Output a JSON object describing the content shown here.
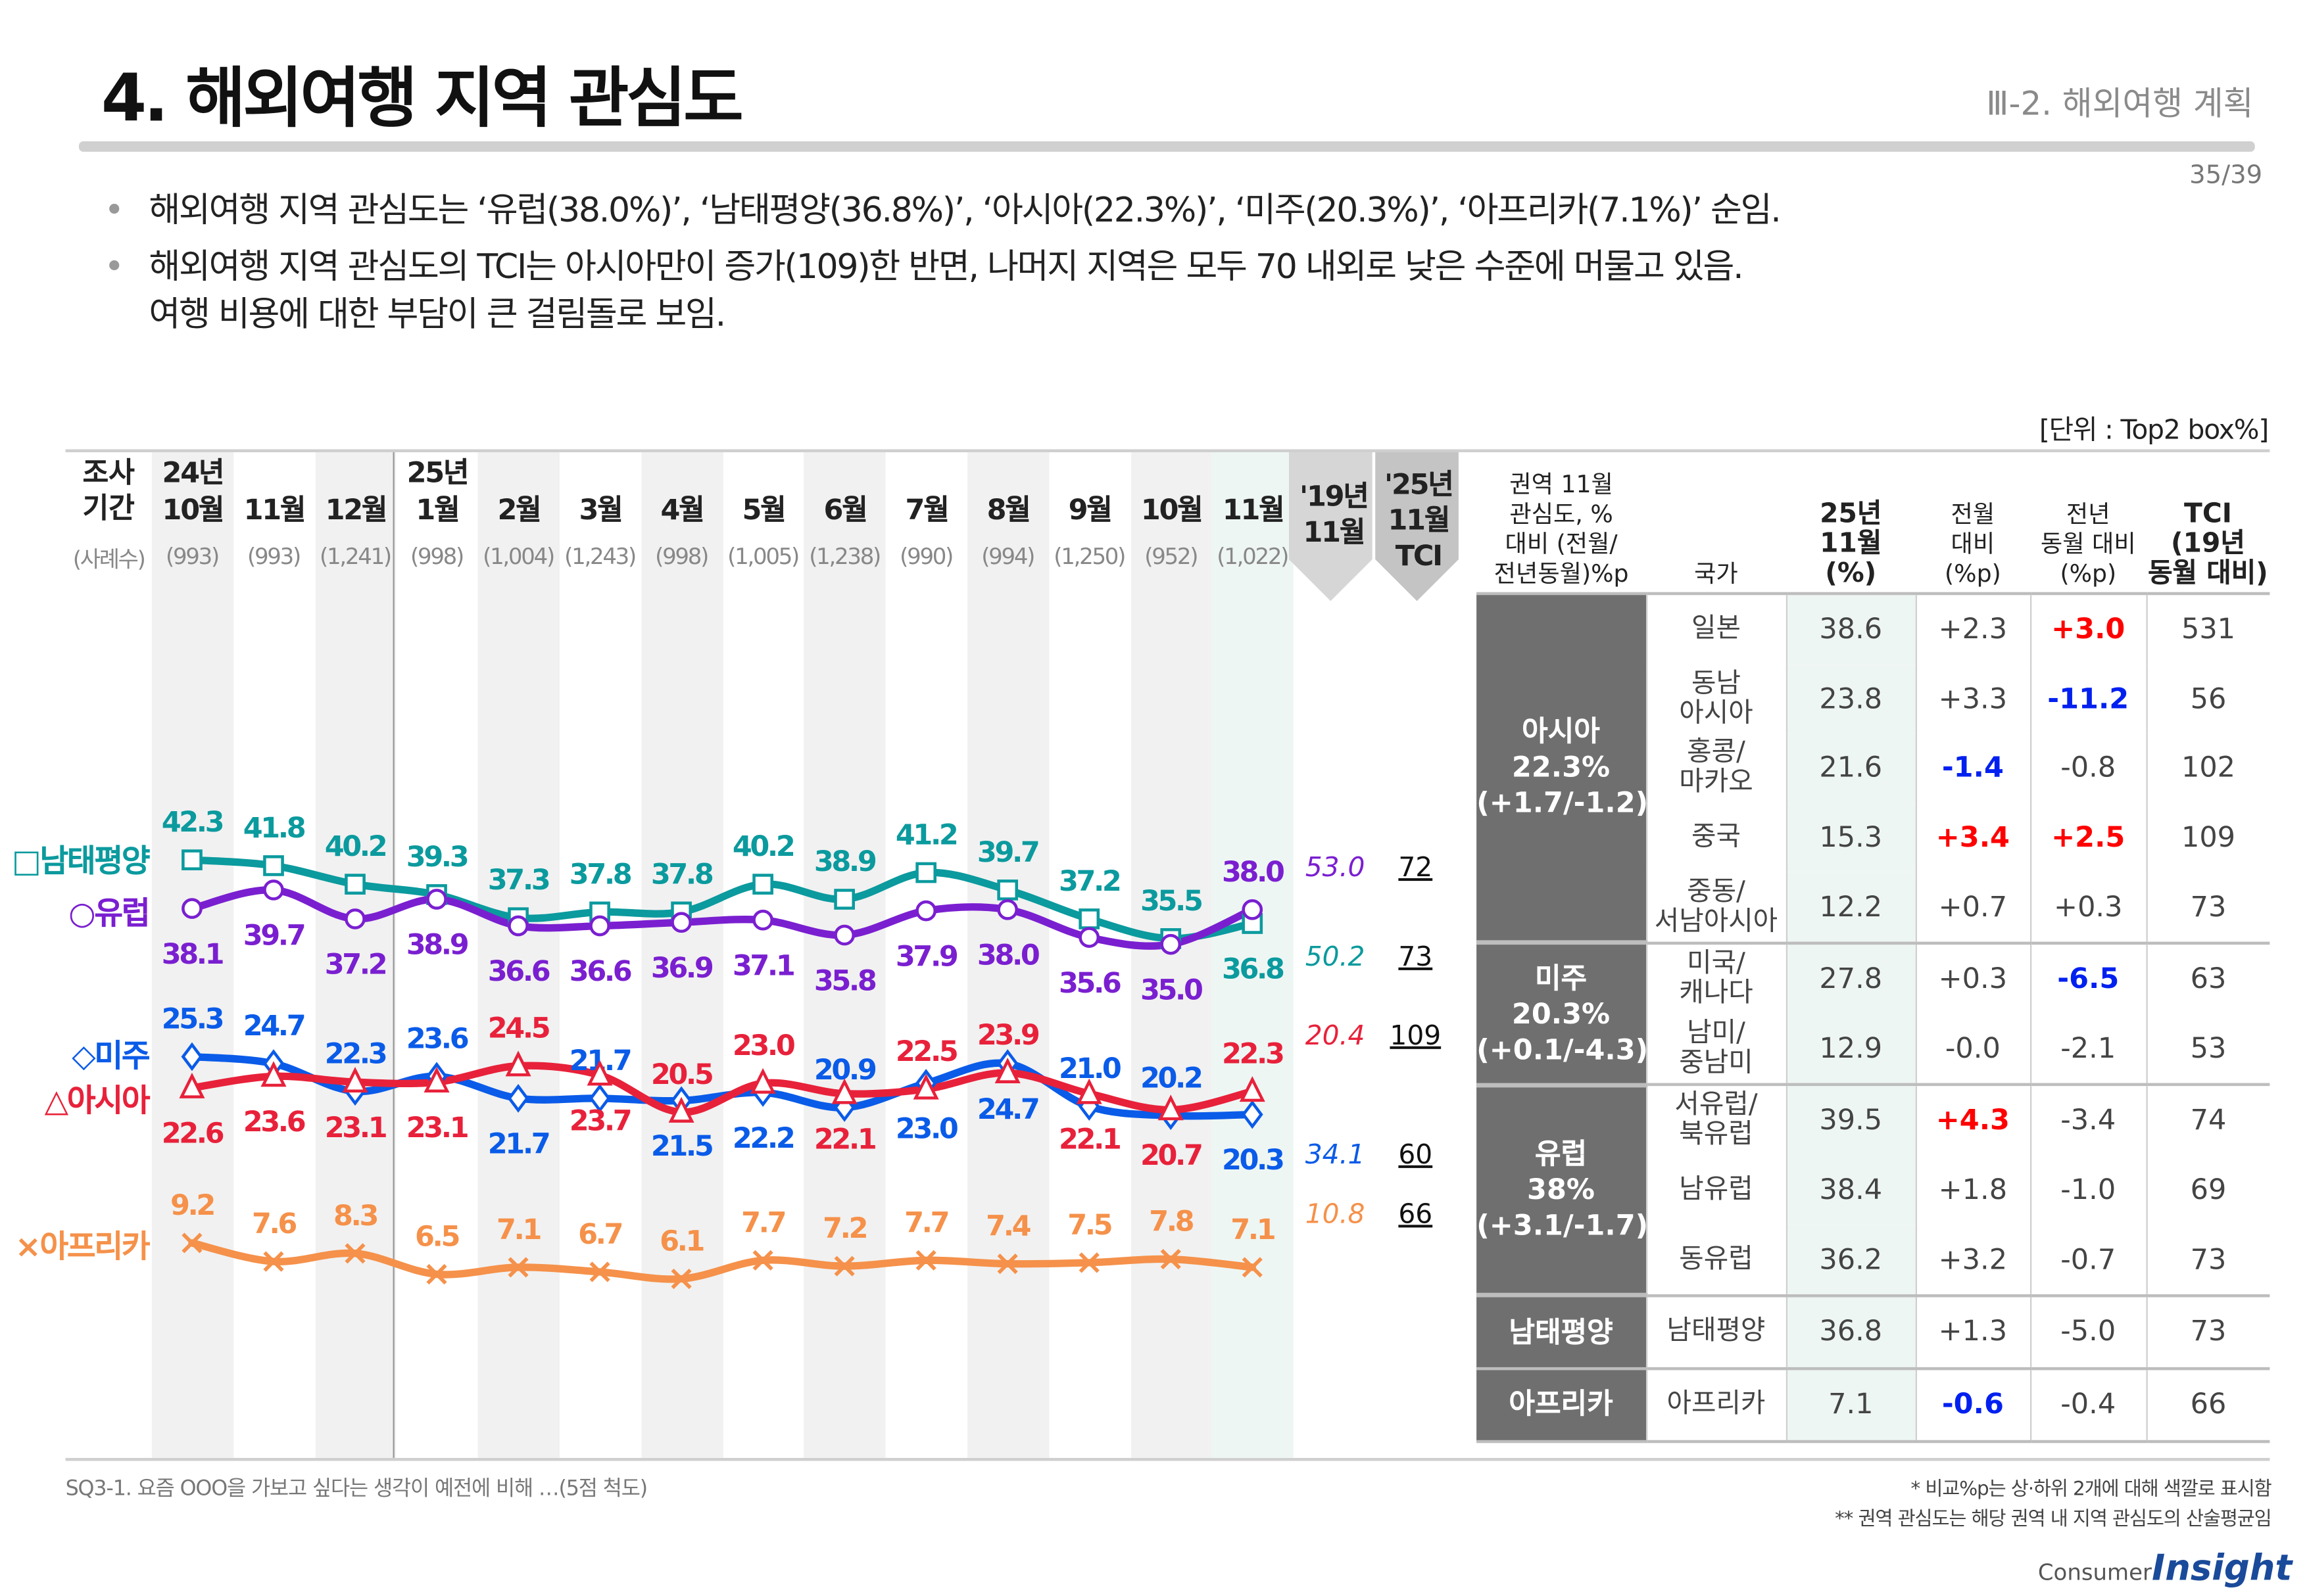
{
  "header": {
    "title": "4. 해외여행 지역 관심도",
    "section": "Ⅲ-2. 해외여행 계획",
    "page": "35/39"
  },
  "bullets": [
    "해외여행 지역 관심도는 ‘유럽(38.0%)’, ‘남태평양(36.8%)’, ‘아시아(22.3%)’, ‘미주(20.3%)’, ‘아프리카(7.1%)’ 순임.",
    "해외여행 지역 관심도의 TCI는 아시아만이 증가(109)한 반면, 나머지 지역은 모두 70 내외로 낮은 수준에 머물고 있음.",
    "여행 비용에 대한 부담이 큰 걸림돌로 보임."
  ],
  "unit": "[단위 : Top2 box%]",
  "chart_data": {
    "type": "line",
    "period_label": "조사\n기간",
    "count_label": "(사례수)",
    "categories": [
      {
        "year": "24년",
        "month": "10월",
        "n": "(993)"
      },
      {
        "year": "",
        "month": "11월",
        "n": "(993)"
      },
      {
        "year": "",
        "month": "12월",
        "n": "(1,241)"
      },
      {
        "year": "25년",
        "month": "1월",
        "n": "(998)"
      },
      {
        "year": "",
        "month": "2월",
        "n": "(1,004)"
      },
      {
        "year": "",
        "month": "3월",
        "n": "(1,243)"
      },
      {
        "year": "",
        "month": "4월",
        "n": "(998)"
      },
      {
        "year": "",
        "month": "5월",
        "n": "(1,005)"
      },
      {
        "year": "",
        "month": "6월",
        "n": "(1,238)"
      },
      {
        "year": "",
        "month": "7월",
        "n": "(990)"
      },
      {
        "year": "",
        "month": "8월",
        "n": "(994)"
      },
      {
        "year": "",
        "month": "9월",
        "n": "(1,250)"
      },
      {
        "year": "",
        "month": "10월",
        "n": "(952)"
      },
      {
        "year": "",
        "month": "11월",
        "n": "(1,022)"
      }
    ],
    "compare_header": "'19년\n11월",
    "tci_header": "'25년\n11월\nTCI",
    "series": [
      {
        "name": "□남태평양",
        "marker": "square",
        "color": "#0b9a9e",
        "values": [
          42.3,
          41.8,
          40.2,
          39.3,
          37.3,
          37.8,
          37.8,
          40.2,
          38.9,
          41.2,
          39.7,
          37.2,
          35.5,
          36.8
        ],
        "y2019": "50.2",
        "tci": "73"
      },
      {
        "name": "○유럽",
        "marker": "circle",
        "color": "#7a1fd0",
        "values": [
          38.1,
          39.7,
          37.2,
          38.9,
          36.6,
          36.6,
          36.9,
          37.1,
          35.8,
          37.9,
          38.0,
          35.6,
          35.0,
          38.0
        ],
        "y2019": "53.0",
        "tci": "72"
      },
      {
        "name": "◇미주",
        "marker": "diamond",
        "color": "#0a5be8",
        "values": [
          25.3,
          24.7,
          22.3,
          23.6,
          21.7,
          21.7,
          21.5,
          22.2,
          20.9,
          23.0,
          24.7,
          21.0,
          20.2,
          20.3
        ],
        "y2019": "34.1",
        "tci": "60"
      },
      {
        "name": "△아시아",
        "marker": "triangle",
        "color": "#e8213a",
        "values": [
          22.6,
          23.6,
          23.1,
          23.1,
          24.5,
          23.7,
          20.5,
          23.0,
          22.1,
          22.5,
          23.9,
          22.1,
          20.7,
          22.3
        ],
        "y2019": "20.4",
        "tci": "109"
      },
      {
        "name": "×아프리카",
        "marker": "x",
        "color": "#f5914a",
        "values": [
          9.2,
          7.6,
          8.3,
          6.5,
          7.1,
          6.7,
          6.1,
          7.7,
          7.2,
          7.7,
          7.4,
          7.5,
          7.8,
          7.1
        ],
        "y2019": "10.8",
        "tci": "66"
      }
    ]
  },
  "table": {
    "headers": {
      "region": "권역 11월\n관심도, %\n대비 (전월/\n전년동월)%p",
      "country": "국가",
      "cur": "25년\n11월\n(%)",
      "mom": "전월\n대비\n(%p)",
      "yoy": "전년\n동월 대비\n(%p)",
      "tci": "TCI\n(19년\n동월 대비)"
    },
    "groups": [
      {
        "region": "아시아\n22.3%\n(+1.7/-1.2)",
        "rows": [
          {
            "country": "일본",
            "cur": "38.6",
            "mom": "+2.3",
            "yoy": "+3.0",
            "tci": "531",
            "yoy_hl": "up"
          },
          {
            "country": "동남\n아시아",
            "cur": "23.8",
            "mom": "+3.3",
            "yoy": "-11.2",
            "tci": "56",
            "yoy_hl": "down"
          },
          {
            "country": "홍콩/\n마카오",
            "cur": "21.6",
            "mom": "-1.4",
            "yoy": "-0.8",
            "tci": "102",
            "mom_hl": "down"
          },
          {
            "country": "중국",
            "cur": "15.3",
            "mom": "+3.4",
            "yoy": "+2.5",
            "tci": "109",
            "mom_hl": "up",
            "yoy_hl": "up"
          },
          {
            "country": "중동/\n서남아시아",
            "cur": "12.2",
            "mom": "+0.7",
            "yoy": "+0.3",
            "tci": "73"
          }
        ]
      },
      {
        "region": "미주\n20.3%\n(+0.1/-4.3)",
        "rows": [
          {
            "country": "미국/\n캐나다",
            "cur": "27.8",
            "mom": "+0.3",
            "yoy": "-6.5",
            "tci": "63",
            "yoy_hl": "down"
          },
          {
            "country": "남미/\n중남미",
            "cur": "12.9",
            "mom": "-0.0",
            "yoy": "-2.1",
            "tci": "53"
          }
        ]
      },
      {
        "region": "유럽\n38%\n(+3.1/-1.7)",
        "rows": [
          {
            "country": "서유럽/\n북유럽",
            "cur": "39.5",
            "mom": "+4.3",
            "yoy": "-3.4",
            "tci": "74",
            "mom_hl": "up"
          },
          {
            "country": "남유럽",
            "cur": "38.4",
            "mom": "+1.8",
            "yoy": "-1.0",
            "tci": "69"
          },
          {
            "country": "동유럽",
            "cur": "36.2",
            "mom": "+3.2",
            "yoy": "-0.7",
            "tci": "73"
          }
        ]
      },
      {
        "region": "남태평양",
        "rows": [
          {
            "country": "남태평양",
            "cur": "36.8",
            "mom": "+1.3",
            "yoy": "-5.0",
            "tci": "73"
          }
        ]
      },
      {
        "region": "아프리카",
        "rows": [
          {
            "country": "아프리카",
            "cur": "7.1",
            "mom": "-0.6",
            "yoy": "-0.4",
            "tci": "66",
            "mom_hl": "down"
          }
        ]
      }
    ]
  },
  "footer": {
    "question": "SQ3-1. 요즘 OOO을 가보고 싶다는 생각이 예전에 비해 …(5점 척도)",
    "note1": "* 비교%p는 상·하위 2개에 대해 색깔로 표시함",
    "note2": "** 권역 관심도는 해당 권역 내 지역 관심도의 산술평균임",
    "logo_a": "Consumer",
    "logo_b": "Insight"
  }
}
